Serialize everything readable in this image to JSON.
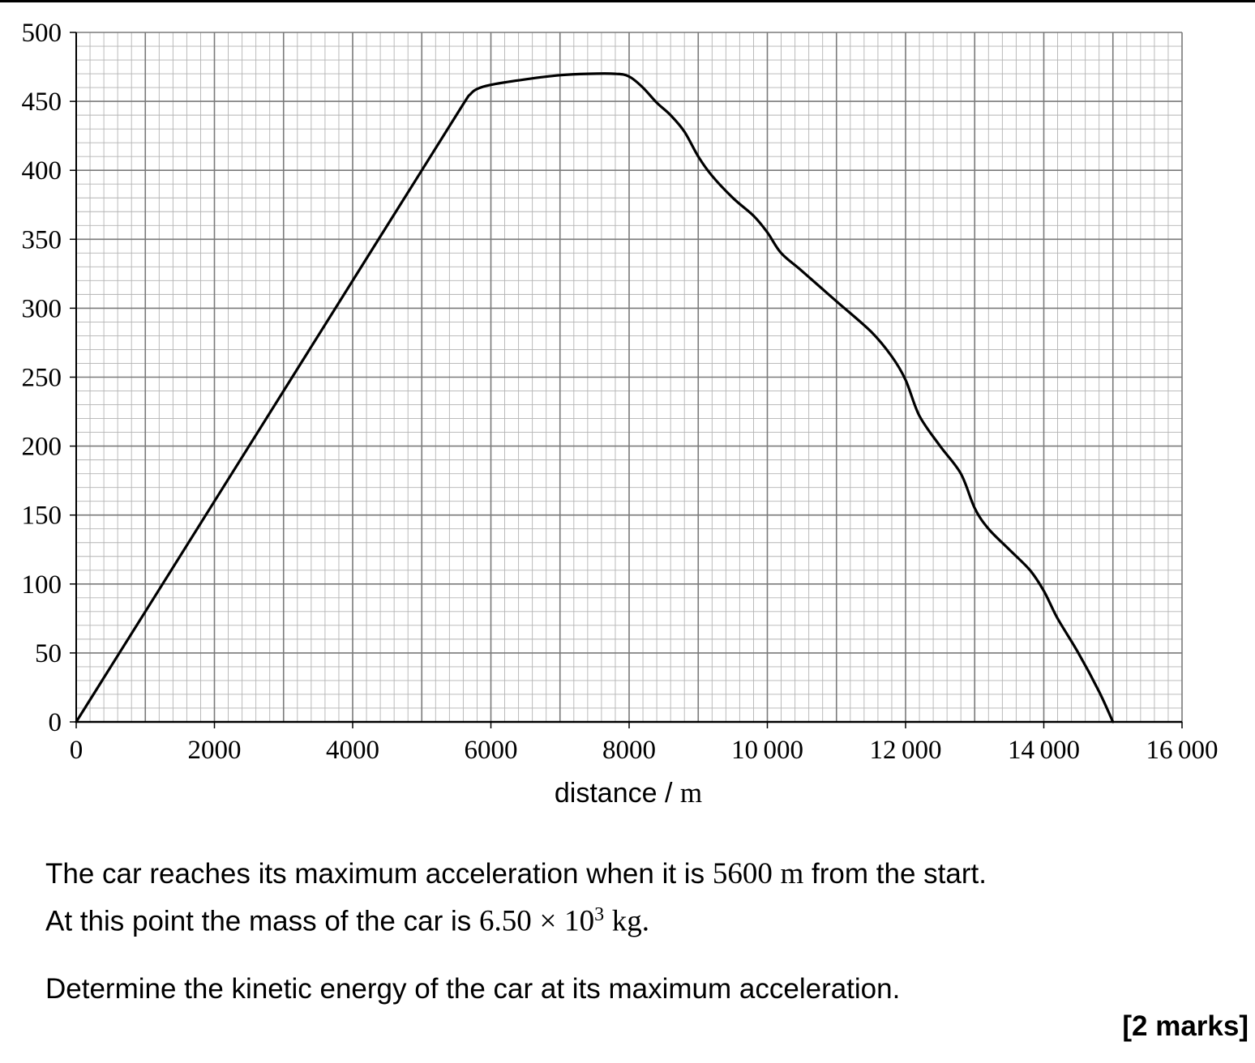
{
  "chart_data": {
    "type": "line",
    "title": "",
    "xlabel": "distance / m",
    "xlabel_text": "distance",
    "xlabel_sep": " / ",
    "xlabel_unit": "m",
    "ylabel": "",
    "xlim": [
      0,
      16000
    ],
    "ylim": [
      0,
      500
    ],
    "xticks": [
      "0",
      "2000",
      "4000",
      "6000",
      "8000",
      "10000",
      "12000",
      "14000",
      "16000"
    ],
    "xtick_text": [
      "0",
      "2000",
      "4000",
      "6000",
      "8000",
      "10 000",
      "12 000",
      "14 000",
      "16 000"
    ],
    "yticks": [
      "0",
      "50",
      "100",
      "150",
      "200",
      "250",
      "300",
      "350",
      "400",
      "450",
      "500"
    ],
    "grid": true,
    "grid_minor_x": 200,
    "grid_minor_y": 10,
    "grid_major_x": 1000,
    "grid_major_y": 50,
    "series": [
      {
        "x": [
          0,
          1000,
          2000,
          3000,
          4000,
          5000,
          5600,
          5700,
          5800,
          6000,
          6500,
          7000,
          7400,
          7800,
          8000,
          8200,
          8400,
          8600,
          8800,
          9000,
          9200,
          9500,
          9800,
          10000,
          10200,
          10500,
          11000,
          11500,
          11800,
          12000,
          12200,
          12500,
          12800,
          13000,
          13200,
          13500,
          13800,
          14000,
          14200,
          14500,
          14800,
          15000
        ],
        "y": [
          0,
          80,
          160,
          240,
          320,
          400,
          448,
          455,
          459,
          462,
          466,
          469,
          470,
          470,
          468,
          460,
          449,
          440,
          428,
          410,
          396,
          380,
          367,
          355,
          340,
          327,
          305,
          283,
          265,
          248,
          222,
          200,
          180,
          155,
          140,
          125,
          110,
          95,
          75,
          50,
          22,
          0
        ]
      }
    ]
  },
  "question": {
    "line1_pre": "The car reaches its maximum acceleration when it is ",
    "line1_value": "5600",
    "line1_unit": "m",
    "line1_post": " from the start.",
    "line2_pre": "At this point the mass of the car is ",
    "line2_mantissa": "6.50",
    "line2_times": "×",
    "line2_base": "10",
    "line2_exp": "3",
    "line2_unit": "kg.",
    "line3": "Determine the kinetic energy of the car at its maximum acceleration.",
    "marks": "[2 marks]"
  },
  "colors": {
    "grid_minor": "#b3b3b3",
    "grid_major": "#7a7a7a",
    "axis": "#000000",
    "curve": "#000000"
  }
}
